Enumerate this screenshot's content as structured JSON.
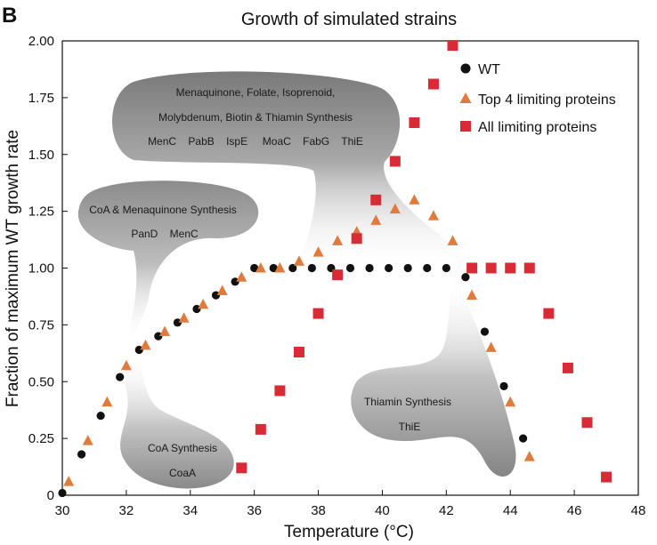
{
  "panel_label": "B",
  "chart_data": {
    "type": "scatter",
    "title": "Growth of simulated strains",
    "xlabel": "Temperature (°C)",
    "ylabel": "Fraction of maximum WT growth rate",
    "xlim": [
      30,
      48
    ],
    "ylim": [
      0,
      2.0
    ],
    "xticks": [
      30,
      32,
      34,
      36,
      38,
      40,
      42,
      44,
      46,
      48
    ],
    "yticks": [
      "0",
      "0.25",
      "0.50",
      "0.75",
      "1.00",
      "1.25",
      "1.50",
      "1.75",
      "2.00"
    ],
    "legend_position": "top-right",
    "series": [
      {
        "name": "WT",
        "marker": "circle",
        "color": "#111111",
        "x": [
          30.0,
          30.6,
          31.2,
          31.8,
          32.4,
          33.0,
          33.6,
          34.2,
          34.8,
          35.4,
          36.0,
          36.6,
          37.2,
          37.8,
          38.4,
          39.0,
          39.6,
          40.2,
          40.8,
          41.4,
          42.0,
          42.6,
          43.2,
          43.8,
          44.4
        ],
        "y": [
          0.01,
          0.18,
          0.35,
          0.52,
          0.64,
          0.7,
          0.76,
          0.82,
          0.88,
          0.94,
          1.0,
          1.0,
          1.0,
          1.0,
          1.0,
          1.0,
          1.0,
          1.0,
          1.0,
          1.0,
          1.0,
          0.96,
          0.72,
          0.48,
          0.25
        ]
      },
      {
        "name": "Top 4 limiting proteins",
        "marker": "triangle",
        "color": "#e07b3c",
        "x": [
          30.2,
          30.8,
          31.4,
          32.0,
          32.6,
          33.2,
          33.8,
          34.4,
          35.0,
          35.6,
          36.2,
          36.8,
          37.4,
          38.0,
          38.6,
          39.2,
          39.8,
          40.4,
          41.0,
          41.6,
          42.2,
          42.8,
          43.4,
          44.0,
          44.6
        ],
        "y": [
          0.06,
          0.24,
          0.41,
          0.57,
          0.66,
          0.72,
          0.78,
          0.84,
          0.9,
          0.96,
          1.0,
          1.0,
          1.03,
          1.07,
          1.12,
          1.16,
          1.21,
          1.26,
          1.3,
          1.23,
          1.12,
          0.88,
          0.65,
          0.41,
          0.17
        ]
      },
      {
        "name": "All limiting proteins",
        "marker": "square",
        "color": "#d92b36",
        "x": [
          35.6,
          36.2,
          36.8,
          37.4,
          38.0,
          38.6,
          39.2,
          39.8,
          40.4,
          41.0,
          41.6,
          42.2,
          42.8,
          43.4,
          44.0,
          44.6,
          45.2,
          45.8,
          46.4,
          47.0
        ],
        "y": [
          0.12,
          0.29,
          0.46,
          0.63,
          0.8,
          0.97,
          1.13,
          1.3,
          1.47,
          1.64,
          1.81,
          1.98,
          1.0,
          1.0,
          1.0,
          1.0,
          0.8,
          0.56,
          0.32,
          0.08
        ]
      }
    ],
    "annotations": [
      {
        "id": "menaquinone",
        "lines": [
          "Menaquinone, Folate, Isoprenoid,",
          "Molybdenum, Biotin & Thiamin Synthesis",
          "MenC    PabB    IspE     MoaC    FabG    ThiE"
        ]
      },
      {
        "id": "coa-menaquinone",
        "lines": [
          "CoA & Menaquinone Synthesis",
          "PanD    MenC"
        ]
      },
      {
        "id": "thiamin",
        "lines": [
          "Thiamin Synthesis",
          "ThiE"
        ]
      },
      {
        "id": "coa",
        "lines": [
          "CoA Synthesis",
          "CoaA"
        ]
      }
    ]
  }
}
